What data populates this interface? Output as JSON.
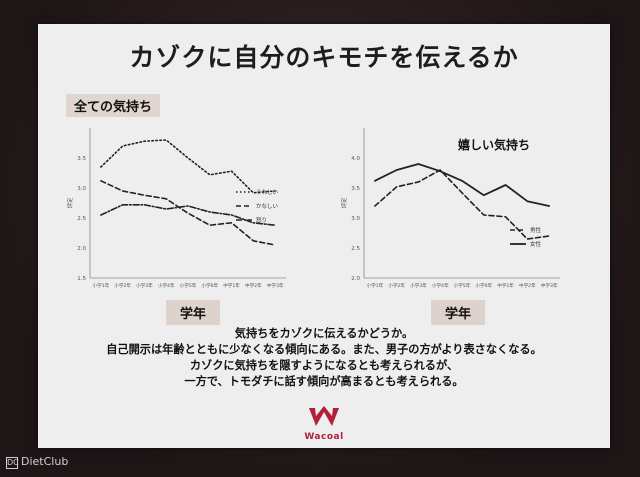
{
  "slide": {
    "title": "カゾクに自分のキモチを伝えるか",
    "caption": [
      "気持ちをカゾクに伝えるかどうか。",
      "自己開示は年齢とともに少なくなる傾向にある。また、男子の方がより表さなくなる。",
      "カゾクに気持ちを隠すようになるとも考えられるが、",
      "一方で、トモダチに話す傾向が高まるとも考えられる。"
    ],
    "logo_text": "Wacoal"
  },
  "watermark": {
    "icon": "dc-logo-icon",
    "text": "DietClub"
  },
  "chart_data": [
    {
      "type": "line",
      "title": "全ての気持ち",
      "xlabel": "学年",
      "ylabel": "評定",
      "categories": [
        "小学1年",
        "小学2年",
        "小学3年",
        "小学4年",
        "小学5年",
        "小学6年",
        "中学1年",
        "中学2年",
        "中学3年"
      ],
      "ylim": [
        1.5,
        4.0
      ],
      "yticks": [
        "1.5",
        "2.0",
        "2.5",
        "3.0",
        "3.5"
      ],
      "series": [
        {
          "name": "うれしい",
          "style": "dotted",
          "values": [
            3.35,
            3.7,
            3.78,
            3.8,
            3.5,
            3.22,
            3.28,
            2.92,
            2.95
          ]
        },
        {
          "name": "かなしい",
          "style": "dashed",
          "values": [
            3.12,
            2.95,
            2.88,
            2.82,
            2.58,
            2.38,
            2.42,
            2.12,
            2.05
          ]
        },
        {
          "name": "怒り",
          "style": "dash-dot",
          "values": [
            2.55,
            2.72,
            2.72,
            2.65,
            2.7,
            2.6,
            2.55,
            2.42,
            2.38
          ]
        }
      ]
    },
    {
      "type": "line",
      "title": "嬉しい気持ち",
      "xlabel": "学年",
      "ylabel": "評定",
      "categories": [
        "小学1年",
        "小学2年",
        "小学3年",
        "小学4年",
        "小学5年",
        "小学6年",
        "中学1年",
        "中学2年",
        "中学3年"
      ],
      "ylim": [
        2.0,
        4.5
      ],
      "yticks": [
        "2.0",
        "2.5",
        "3.0",
        "3.5",
        "4.0"
      ],
      "series": [
        {
          "name": "男性",
          "style": "dashed",
          "values": [
            3.2,
            3.52,
            3.6,
            3.8,
            3.42,
            3.05,
            3.02,
            2.65,
            2.7
          ]
        },
        {
          "name": "女性",
          "style": "solid",
          "values": [
            3.62,
            3.8,
            3.9,
            3.78,
            3.62,
            3.38,
            3.55,
            3.28,
            3.2
          ]
        }
      ]
    }
  ]
}
